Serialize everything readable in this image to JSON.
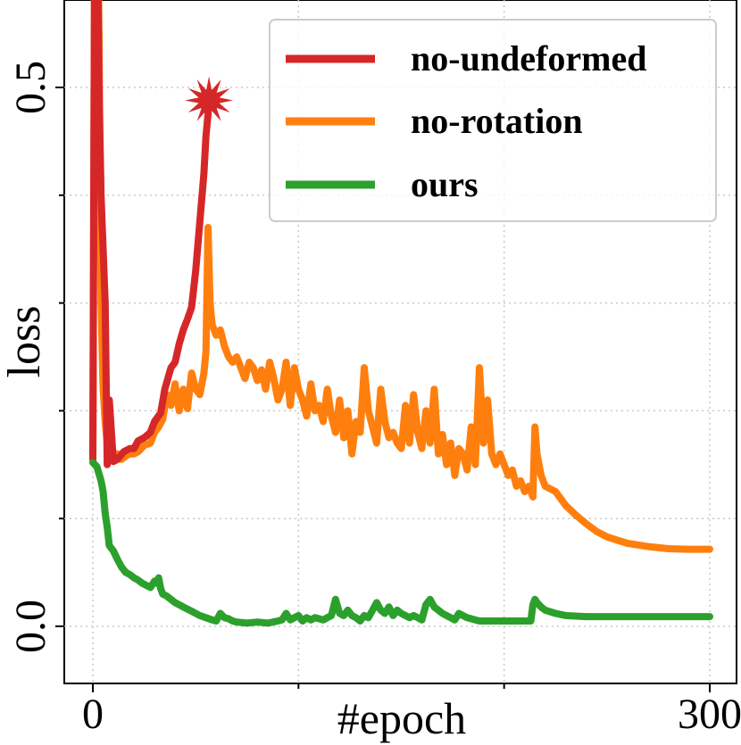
{
  "chart_data": {
    "type": "line",
    "xlabel": "#epoch",
    "ylabel": "loss",
    "xlim": [
      -12,
      305
    ],
    "ylim": [
      -0.05,
      0.58
    ],
    "grid": true,
    "grid_style": "dotted",
    "legend_position": "top-right",
    "x_tick_values": [
      0,
      100,
      200,
      300
    ],
    "x_tick_labels": [
      "0",
      "",
      "",
      "300"
    ],
    "y_tick_values": [
      0.0,
      0.1,
      0.2,
      0.3,
      0.4,
      0.5
    ],
    "y_tick_labels": [
      "0.0",
      "",
      "",
      "",
      "",
      "0.5"
    ],
    "series": [
      {
        "name": "no-undeformed",
        "color": "#d62728",
        "marker_end": "star",
        "points": [
          [
            0,
            0.155
          ],
          [
            1,
            0.7
          ],
          [
            2,
            0.7
          ],
          [
            3,
            0.5
          ],
          [
            4,
            0.4
          ],
          [
            5,
            0.35
          ],
          [
            6,
            0.3
          ],
          [
            7,
            0.15
          ],
          [
            8,
            0.21
          ],
          [
            10,
            0.153
          ],
          [
            12,
            0.155
          ],
          [
            15,
            0.162
          ],
          [
            18,
            0.165
          ],
          [
            20,
            0.165
          ],
          [
            22,
            0.172
          ],
          [
            25,
            0.175
          ],
          [
            28,
            0.18
          ],
          [
            30,
            0.19
          ],
          [
            33,
            0.198
          ],
          [
            35,
            0.22
          ],
          [
            38,
            0.24
          ],
          [
            40,
            0.245
          ],
          [
            42,
            0.262
          ],
          [
            44,
            0.275
          ],
          [
            46,
            0.285
          ],
          [
            48,
            0.296
          ],
          [
            50,
            0.33
          ],
          [
            52,
            0.375
          ],
          [
            54,
            0.42
          ],
          [
            55,
            0.455
          ],
          [
            56,
            0.475
          ],
          [
            56.5,
            0.488
          ]
        ]
      },
      {
        "name": "no-rotation",
        "color": "#ff7f0e",
        "points": [
          [
            0,
            0.155
          ],
          [
            1,
            0.7
          ],
          [
            2,
            0.7
          ],
          [
            3,
            0.55
          ],
          [
            4,
            0.3
          ],
          [
            5,
            0.22
          ],
          [
            6,
            0.19
          ],
          [
            7,
            0.17
          ],
          [
            8,
            0.16
          ],
          [
            10,
            0.153
          ],
          [
            12,
            0.16
          ],
          [
            14,
            0.155
          ],
          [
            16,
            0.158
          ],
          [
            18,
            0.16
          ],
          [
            20,
            0.16
          ],
          [
            22,
            0.162
          ],
          [
            25,
            0.168
          ],
          [
            28,
            0.17
          ],
          [
            30,
            0.18
          ],
          [
            32,
            0.185
          ],
          [
            34,
            0.192
          ],
          [
            36,
            0.215
          ],
          [
            38,
            0.205
          ],
          [
            40,
            0.225
          ],
          [
            42,
            0.2
          ],
          [
            44,
            0.22
          ],
          [
            46,
            0.202
          ],
          [
            48,
            0.235
          ],
          [
            50,
            0.22
          ],
          [
            52,
            0.215
          ],
          [
            54,
            0.235
          ],
          [
            55,
            0.255
          ],
          [
            56,
            0.37
          ],
          [
            57,
            0.3
          ],
          [
            58,
            0.28
          ],
          [
            60,
            0.27
          ],
          [
            62,
            0.275
          ],
          [
            64,
            0.26
          ],
          [
            66,
            0.25
          ],
          [
            68,
            0.245
          ],
          [
            70,
            0.25
          ],
          [
            72,
            0.24
          ],
          [
            74,
            0.23
          ],
          [
            76,
            0.245
          ],
          [
            78,
            0.24
          ],
          [
            80,
            0.228
          ],
          [
            82,
            0.238
          ],
          [
            84,
            0.22
          ],
          [
            86,
            0.245
          ],
          [
            88,
            0.23
          ],
          [
            90,
            0.21
          ],
          [
            92,
            0.22
          ],
          [
            94,
            0.245
          ],
          [
            96,
            0.205
          ],
          [
            98,
            0.24
          ],
          [
            100,
            0.22
          ],
          [
            102,
            0.21
          ],
          [
            104,
            0.195
          ],
          [
            106,
            0.225
          ],
          [
            108,
            0.2
          ],
          [
            110,
            0.205
          ],
          [
            112,
            0.19
          ],
          [
            114,
            0.22
          ],
          [
            116,
            0.195
          ],
          [
            118,
            0.18
          ],
          [
            120,
            0.21
          ],
          [
            122,
            0.175
          ],
          [
            124,
            0.2
          ],
          [
            126,
            0.16
          ],
          [
            128,
            0.19
          ],
          [
            130,
            0.18
          ],
          [
            132,
            0.24
          ],
          [
            134,
            0.2
          ],
          [
            136,
            0.185
          ],
          [
            138,
            0.17
          ],
          [
            140,
            0.22
          ],
          [
            142,
            0.19
          ],
          [
            144,
            0.175
          ],
          [
            146,
            0.18
          ],
          [
            148,
            0.17
          ],
          [
            150,
            0.165
          ],
          [
            152,
            0.205
          ],
          [
            154,
            0.17
          ],
          [
            156,
            0.215
          ],
          [
            158,
            0.18
          ],
          [
            160,
            0.165
          ],
          [
            162,
            0.2
          ],
          [
            164,
            0.17
          ],
          [
            166,
            0.22
          ],
          [
            168,
            0.16
          ],
          [
            170,
            0.178
          ],
          [
            172,
            0.15
          ],
          [
            174,
            0.17
          ],
          [
            176,
            0.14
          ],
          [
            178,
            0.165
          ],
          [
            180,
            0.16
          ],
          [
            182,
            0.145
          ],
          [
            184,
            0.185
          ],
          [
            186,
            0.15
          ],
          [
            188,
            0.24
          ],
          [
            190,
            0.17
          ],
          [
            192,
            0.21
          ],
          [
            194,
            0.16
          ],
          [
            196,
            0.15
          ],
          [
            198,
            0.16
          ],
          [
            200,
            0.15
          ],
          [
            202,
            0.14
          ],
          [
            204,
            0.145
          ],
          [
            206,
            0.13
          ],
          [
            208,
            0.135
          ],
          [
            210,
            0.125
          ],
          [
            212,
            0.13
          ],
          [
            214,
            0.12
          ],
          [
            215,
            0.185
          ],
          [
            216,
            0.16
          ],
          [
            218,
            0.14
          ],
          [
            220,
            0.13
          ],
          [
            225,
            0.125
          ],
          [
            230,
            0.112
          ],
          [
            235,
            0.103
          ],
          [
            240,
            0.095
          ],
          [
            245,
            0.088
          ],
          [
            250,
            0.083
          ],
          [
            255,
            0.08
          ],
          [
            260,
            0.077
          ],
          [
            270,
            0.074
          ],
          [
            280,
            0.072
          ],
          [
            290,
            0.0715
          ],
          [
            300,
            0.0715
          ]
        ]
      },
      {
        "name": "ours",
        "color": "#2ca02c",
        "points": [
          [
            0,
            0.152
          ],
          [
            2,
            0.148
          ],
          [
            4,
            0.135
          ],
          [
            5,
            0.125
          ],
          [
            6,
            0.105
          ],
          [
            7,
            0.092
          ],
          [
            8,
            0.075
          ],
          [
            10,
            0.07
          ],
          [
            12,
            0.062
          ],
          [
            14,
            0.055
          ],
          [
            16,
            0.05
          ],
          [
            18,
            0.048
          ],
          [
            20,
            0.045
          ],
          [
            22,
            0.043
          ],
          [
            24,
            0.04
          ],
          [
            26,
            0.038
          ],
          [
            28,
            0.036
          ],
          [
            30,
            0.042
          ],
          [
            31,
            0.04
          ],
          [
            32,
            0.045
          ],
          [
            33,
            0.035
          ],
          [
            34,
            0.03
          ],
          [
            36,
            0.028
          ],
          [
            38,
            0.025
          ],
          [
            40,
            0.022
          ],
          [
            42,
            0.02
          ],
          [
            44,
            0.018
          ],
          [
            46,
            0.016
          ],
          [
            48,
            0.014
          ],
          [
            50,
            0.012
          ],
          [
            52,
            0.01
          ],
          [
            55,
            0.008
          ],
          [
            58,
            0.006
          ],
          [
            60,
            0.005
          ],
          [
            62,
            0.012
          ],
          [
            64,
            0.008
          ],
          [
            66,
            0.007
          ],
          [
            68,
            0.005
          ],
          [
            70,
            0.004
          ],
          [
            75,
            0.003
          ],
          [
            80,
            0.004
          ],
          [
            85,
            0.003
          ],
          [
            90,
            0.005
          ],
          [
            92,
            0.006
          ],
          [
            94,
            0.012
          ],
          [
            96,
            0.006
          ],
          [
            98,
            0.008
          ],
          [
            100,
            0.01
          ],
          [
            102,
            0.005
          ],
          [
            104,
            0.008
          ],
          [
            106,
            0.006
          ],
          [
            108,
            0.008
          ],
          [
            110,
            0.007
          ],
          [
            112,
            0.006
          ],
          [
            114,
            0.008
          ],
          [
            116,
            0.01
          ],
          [
            118,
            0.025
          ],
          [
            120,
            0.012
          ],
          [
            122,
            0.01
          ],
          [
            124,
            0.015
          ],
          [
            126,
            0.01
          ],
          [
            128,
            0.008
          ],
          [
            130,
            0.005
          ],
          [
            132,
            0.01
          ],
          [
            134,
            0.008
          ],
          [
            136,
            0.015
          ],
          [
            138,
            0.022
          ],
          [
            140,
            0.015
          ],
          [
            142,
            0.012
          ],
          [
            144,
            0.018
          ],
          [
            146,
            0.01
          ],
          [
            148,
            0.015
          ],
          [
            150,
            0.012
          ],
          [
            152,
            0.01
          ],
          [
            154,
            0.008
          ],
          [
            156,
            0.01
          ],
          [
            158,
            0.008
          ],
          [
            160,
            0.006
          ],
          [
            162,
            0.02
          ],
          [
            164,
            0.025
          ],
          [
            166,
            0.018
          ],
          [
            168,
            0.015
          ],
          [
            170,
            0.012
          ],
          [
            172,
            0.01
          ],
          [
            174,
            0.008
          ],
          [
            176,
            0.006
          ],
          [
            178,
            0.012
          ],
          [
            180,
            0.01
          ],
          [
            182,
            0.008
          ],
          [
            184,
            0.007
          ],
          [
            186,
            0.006
          ],
          [
            188,
            0.005
          ],
          [
            190,
            0.005
          ],
          [
            195,
            0.005
          ],
          [
            200,
            0.005
          ],
          [
            205,
            0.005
          ],
          [
            210,
            0.005
          ],
          [
            213,
            0.005
          ],
          [
            214,
            0.02
          ],
          [
            215,
            0.025
          ],
          [
            216,
            0.022
          ],
          [
            218,
            0.018
          ],
          [
            220,
            0.015
          ],
          [
            225,
            0.012
          ],
          [
            230,
            0.01
          ],
          [
            240,
            0.009
          ],
          [
            250,
            0.009
          ],
          [
            260,
            0.009
          ],
          [
            280,
            0.009
          ],
          [
            300,
            0.009
          ]
        ]
      }
    ]
  }
}
